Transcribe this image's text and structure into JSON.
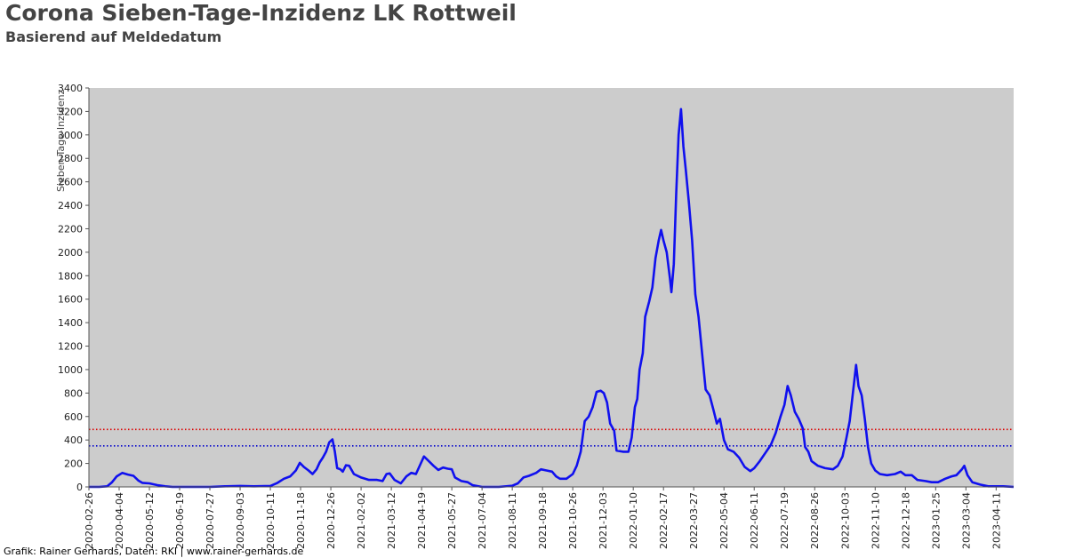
{
  "header": {
    "title": "Corona Sieben-Tage-Inzidenz LK Rottweil",
    "subtitle": "Basierend auf Meldedatum"
  },
  "footer": {
    "credit": "Grafik: Rainer Gerhards, Daten: RKI | www.rainer-gerhards.de"
  },
  "colors": {
    "plot_background": "#cccccc",
    "series_line": "#1010ee",
    "threshold_red": "#dd0000",
    "threshold_blue": "#0000cc"
  },
  "chart_data": {
    "type": "line",
    "title": "Corona Sieben-Tage-Inzidenz LK Rottweil",
    "subtitle": "Basierend auf Meldedatum",
    "xlabel": "",
    "ylabel": "Sieben-Tage-Inzidenz",
    "ylim": [
      0,
      3400
    ],
    "xlim": [
      "2020-02-26",
      "2023-05-03"
    ],
    "grid": false,
    "y_ticks": [
      0,
      200,
      400,
      600,
      800,
      1000,
      1200,
      1400,
      1600,
      1800,
      2000,
      2200,
      2400,
      2600,
      2800,
      3000,
      3200,
      3400
    ],
    "x_ticks": [
      "2020-02-26",
      "2020-04-04",
      "2020-05-12",
      "2020-06-19",
      "2020-07-27",
      "2020-09-03",
      "2020-10-11",
      "2020-11-18",
      "2020-12-26",
      "2021-02-02",
      "2021-03-12",
      "2021-04-19",
      "2021-05-27",
      "2021-07-04",
      "2021-08-11",
      "2021-09-18",
      "2021-10-26",
      "2021-12-03",
      "2022-01-10",
      "2022-02-17",
      "2022-03-27",
      "2022-05-04",
      "2022-06-11",
      "2022-07-19",
      "2022-08-26",
      "2022-10-03",
      "2022-11-10",
      "2022-12-18",
      "2023-01-25",
      "2023-03-04",
      "2023-04-11"
    ],
    "reference_lines": [
      {
        "y": 490,
        "color": "#dd0000",
        "style": "dotted"
      },
      {
        "y": 350,
        "color": "#0000cc",
        "style": "dotted"
      }
    ],
    "series": [
      {
        "color": "#1010ee",
        "points": [
          [
            "2020-02-26",
            0
          ],
          [
            "2020-03-10",
            0
          ],
          [
            "2020-03-20",
            5
          ],
          [
            "2020-03-26",
            40
          ],
          [
            "2020-04-01",
            90
          ],
          [
            "2020-04-08",
            120
          ],
          [
            "2020-04-15",
            105
          ],
          [
            "2020-04-22",
            95
          ],
          [
            "2020-04-28",
            55
          ],
          [
            "2020-05-03",
            35
          ],
          [
            "2020-05-12",
            30
          ],
          [
            "2020-05-22",
            15
          ],
          [
            "2020-06-01",
            5
          ],
          [
            "2020-06-10",
            0
          ],
          [
            "2020-07-27",
            0
          ],
          [
            "2020-08-15",
            5
          ],
          [
            "2020-09-03",
            8
          ],
          [
            "2020-09-20",
            5
          ],
          [
            "2020-10-11",
            8
          ],
          [
            "2020-10-20",
            35
          ],
          [
            "2020-10-28",
            70
          ],
          [
            "2020-11-05",
            90
          ],
          [
            "2020-11-12",
            140
          ],
          [
            "2020-11-17",
            205
          ],
          [
            "2020-11-22",
            170
          ],
          [
            "2020-11-28",
            140
          ],
          [
            "2020-12-03",
            110
          ],
          [
            "2020-12-08",
            150
          ],
          [
            "2020-12-12",
            210
          ],
          [
            "2020-12-16",
            250
          ],
          [
            "2020-12-20",
            300
          ],
          [
            "2020-12-24",
            380
          ],
          [
            "2020-12-28",
            405
          ],
          [
            "2020-12-31",
            300
          ],
          [
            "2021-01-03",
            160
          ],
          [
            "2021-01-07",
            150
          ],
          [
            "2021-01-10",
            130
          ],
          [
            "2021-01-14",
            185
          ],
          [
            "2021-01-18",
            180
          ],
          [
            "2021-01-24",
            110
          ],
          [
            "2021-02-02",
            80
          ],
          [
            "2021-02-12",
            60
          ],
          [
            "2021-02-22",
            60
          ],
          [
            "2021-03-01",
            50
          ],
          [
            "2021-03-06",
            110
          ],
          [
            "2021-03-10",
            115
          ],
          [
            "2021-03-16",
            60
          ],
          [
            "2021-03-24",
            30
          ],
          [
            "2021-03-31",
            90
          ],
          [
            "2021-04-06",
            120
          ],
          [
            "2021-04-12",
            110
          ],
          [
            "2021-04-18",
            200
          ],
          [
            "2021-04-22",
            260
          ],
          [
            "2021-04-28",
            220
          ],
          [
            "2021-05-04",
            180
          ],
          [
            "2021-05-10",
            145
          ],
          [
            "2021-05-16",
            165
          ],
          [
            "2021-05-22",
            155
          ],
          [
            "2021-05-27",
            150
          ],
          [
            "2021-05-31",
            80
          ],
          [
            "2021-06-08",
            50
          ],
          [
            "2021-06-16",
            40
          ],
          [
            "2021-06-22",
            15
          ],
          [
            "2021-07-04",
            0
          ],
          [
            "2021-07-25",
            0
          ],
          [
            "2021-08-11",
            10
          ],
          [
            "2021-08-18",
            30
          ],
          [
            "2021-08-25",
            80
          ],
          [
            "2021-09-01",
            95
          ],
          [
            "2021-09-10",
            120
          ],
          [
            "2021-09-16",
            150
          ],
          [
            "2021-09-23",
            140
          ],
          [
            "2021-09-30",
            130
          ],
          [
            "2021-10-05",
            90
          ],
          [
            "2021-10-10",
            70
          ],
          [
            "2021-10-18",
            70
          ],
          [
            "2021-10-26",
            110
          ],
          [
            "2021-10-31",
            180
          ],
          [
            "2021-11-05",
            300
          ],
          [
            "2021-11-10",
            560
          ],
          [
            "2021-11-15",
            600
          ],
          [
            "2021-11-20",
            680
          ],
          [
            "2021-11-25",
            810
          ],
          [
            "2021-11-30",
            820
          ],
          [
            "2021-12-04",
            800
          ],
          [
            "2021-12-08",
            720
          ],
          [
            "2021-12-12",
            540
          ],
          [
            "2021-12-17",
            480
          ],
          [
            "2021-12-20",
            310
          ],
          [
            "2021-12-28",
            300
          ],
          [
            "2022-01-04",
            300
          ],
          [
            "2022-01-08",
            420
          ],
          [
            "2022-01-12",
            680
          ],
          [
            "2022-01-15",
            750
          ],
          [
            "2022-01-18",
            1000
          ],
          [
            "2022-01-22",
            1140
          ],
          [
            "2022-01-25",
            1450
          ],
          [
            "2022-01-30",
            1580
          ],
          [
            "2022-02-03",
            1700
          ],
          [
            "2022-02-07",
            1950
          ],
          [
            "2022-02-11",
            2100
          ],
          [
            "2022-02-14",
            2190
          ],
          [
            "2022-02-17",
            2100
          ],
          [
            "2022-02-21",
            2000
          ],
          [
            "2022-02-25",
            1780
          ],
          [
            "2022-02-27",
            1660
          ],
          [
            "2022-03-02",
            1900
          ],
          [
            "2022-03-05",
            2500
          ],
          [
            "2022-03-08",
            3000
          ],
          [
            "2022-03-11",
            3220
          ],
          [
            "2022-03-14",
            2900
          ],
          [
            "2022-03-17",
            2700
          ],
          [
            "2022-03-21",
            2420
          ],
          [
            "2022-03-25",
            2100
          ],
          [
            "2022-03-29",
            1640
          ],
          [
            "2022-04-02",
            1450
          ],
          [
            "2022-04-07",
            1100
          ],
          [
            "2022-04-11",
            830
          ],
          [
            "2022-04-16",
            780
          ],
          [
            "2022-04-21",
            650
          ],
          [
            "2022-04-25",
            540
          ],
          [
            "2022-04-29",
            580
          ],
          [
            "2022-05-04",
            400
          ],
          [
            "2022-05-09",
            320
          ],
          [
            "2022-05-16",
            300
          ],
          [
            "2022-05-23",
            250
          ],
          [
            "2022-05-30",
            170
          ],
          [
            "2022-06-06",
            135
          ],
          [
            "2022-06-11",
            160
          ],
          [
            "2022-06-18",
            220
          ],
          [
            "2022-06-25",
            290
          ],
          [
            "2022-07-02",
            360
          ],
          [
            "2022-07-08",
            460
          ],
          [
            "2022-07-14",
            600
          ],
          [
            "2022-07-19",
            700
          ],
          [
            "2022-07-23",
            860
          ],
          [
            "2022-07-27",
            780
          ],
          [
            "2022-08-01",
            640
          ],
          [
            "2022-08-06",
            580
          ],
          [
            "2022-08-11",
            500
          ],
          [
            "2022-08-14",
            340
          ],
          [
            "2022-08-18",
            300
          ],
          [
            "2022-08-22",
            220
          ],
          [
            "2022-08-30",
            180
          ],
          [
            "2022-09-08",
            160
          ],
          [
            "2022-09-18",
            150
          ],
          [
            "2022-09-24",
            180
          ],
          [
            "2022-09-30",
            260
          ],
          [
            "2022-10-05",
            420
          ],
          [
            "2022-10-09",
            560
          ],
          [
            "2022-10-13",
            800
          ],
          [
            "2022-10-17",
            1040
          ],
          [
            "2022-10-20",
            860
          ],
          [
            "2022-10-24",
            780
          ],
          [
            "2022-10-28",
            580
          ],
          [
            "2022-11-01",
            340
          ],
          [
            "2022-11-05",
            200
          ],
          [
            "2022-11-10",
            140
          ],
          [
            "2022-11-16",
            110
          ],
          [
            "2022-11-25",
            100
          ],
          [
            "2022-12-05",
            110
          ],
          [
            "2022-12-12",
            130
          ],
          [
            "2022-12-18",
            100
          ],
          [
            "2022-12-26",
            100
          ],
          [
            "2023-01-02",
            60
          ],
          [
            "2023-01-12",
            50
          ],
          [
            "2023-01-20",
            40
          ],
          [
            "2023-01-28",
            40
          ],
          [
            "2023-02-06",
            70
          ],
          [
            "2023-02-14",
            90
          ],
          [
            "2023-02-20",
            100
          ],
          [
            "2023-02-27",
            150
          ],
          [
            "2023-03-02",
            180
          ],
          [
            "2023-03-06",
            100
          ],
          [
            "2023-03-12",
            40
          ],
          [
            "2023-03-22",
            20
          ],
          [
            "2023-04-01",
            5
          ],
          [
            "2023-04-11",
            5
          ],
          [
            "2023-04-20",
            5
          ],
          [
            "2023-05-03",
            0
          ]
        ]
      }
    ]
  }
}
